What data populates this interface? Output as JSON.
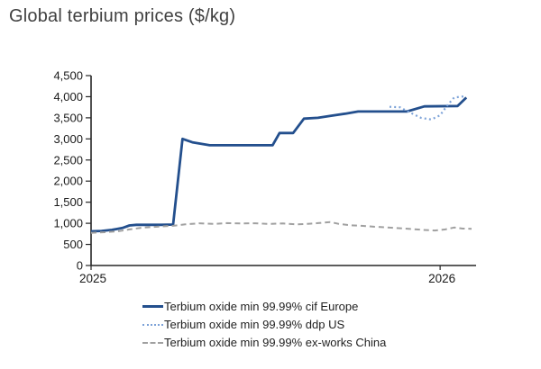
{
  "page": {
    "title": "Global terbium prices ($/kg)"
  },
  "chart_data": {
    "type": "line",
    "title": "Global terbium prices ($/kg)",
    "xlabel": "",
    "ylabel": "$/kg",
    "xlim": [
      2025,
      2026.103
    ],
    "ylim": [
      0,
      4500
    ],
    "grid": false,
    "legend_position": "bottom",
    "axis_color": "#262626",
    "y_ticks": [
      {
        "value": 0,
        "label": "0"
      },
      {
        "value": 500,
        "label": "500"
      },
      {
        "value": 1000,
        "label": "1,000"
      },
      {
        "value": 1500,
        "label": "1,500"
      },
      {
        "value": 2000,
        "label": "2,000"
      },
      {
        "value": 2500,
        "label": "2,500"
      },
      {
        "value": 3000,
        "label": "3,000"
      },
      {
        "value": 3500,
        "label": "3,500"
      },
      {
        "value": 4000,
        "label": "4,000"
      },
      {
        "value": 4500,
        "label": "4,500"
      }
    ],
    "x_ticks": [
      {
        "value": 2025,
        "label": "2025"
      },
      {
        "value": 2026,
        "label": "2026"
      }
    ],
    "series": [
      {
        "name": "Terbium oxide min 99.99% cif Europe",
        "style": "solid",
        "color": "#234f8d",
        "width": 2.8,
        "points": [
          [
            2025.0,
            810
          ],
          [
            2025.03,
            820
          ],
          [
            2025.06,
            845
          ],
          [
            2025.09,
            890
          ],
          [
            2025.11,
            950
          ],
          [
            2025.13,
            965
          ],
          [
            2025.2,
            965
          ],
          [
            2025.235,
            970
          ],
          [
            2025.262,
            3000
          ],
          [
            2025.29,
            2920
          ],
          [
            2025.34,
            2850
          ],
          [
            2025.52,
            2850
          ],
          [
            2025.54,
            3140
          ],
          [
            2025.579,
            3140
          ],
          [
            2025.61,
            3480
          ],
          [
            2025.65,
            3500
          ],
          [
            2025.69,
            3550
          ],
          [
            2025.73,
            3600
          ],
          [
            2025.765,
            3650
          ],
          [
            2025.905,
            3650
          ],
          [
            2025.955,
            3770
          ],
          [
            2026.05,
            3780
          ],
          [
            2026.075,
            3980
          ]
        ]
      },
      {
        "name": "Terbium oxide min 99.99% ddp US",
        "style": "dotted",
        "color": "#7ca2d8",
        "width": 2.2,
        "points": [
          [
            2025.855,
            3760
          ],
          [
            2025.885,
            3750
          ],
          [
            2025.91,
            3640
          ],
          [
            2025.945,
            3500
          ],
          [
            2025.975,
            3460
          ],
          [
            2026.0,
            3560
          ],
          [
            2026.02,
            3790
          ],
          [
            2026.04,
            3980
          ],
          [
            2026.07,
            4010
          ]
        ]
      },
      {
        "name": "Terbium oxide min 99.99% ex-works China",
        "style": "dashed",
        "color": "#a0a0a0",
        "width": 2,
        "points": [
          [
            2025.0,
            775
          ],
          [
            2025.04,
            790
          ],
          [
            2025.08,
            815
          ],
          [
            2025.11,
            855
          ],
          [
            2025.15,
            900
          ],
          [
            2025.2,
            925
          ],
          [
            2025.235,
            940
          ],
          [
            2025.27,
            975
          ],
          [
            2025.31,
            1000
          ],
          [
            2025.35,
            985
          ],
          [
            2025.39,
            1005
          ],
          [
            2025.43,
            995
          ],
          [
            2025.47,
            1000
          ],
          [
            2025.51,
            985
          ],
          [
            2025.55,
            995
          ],
          [
            2025.59,
            975
          ],
          [
            2025.625,
            990
          ],
          [
            2025.65,
            1005
          ],
          [
            2025.685,
            1030
          ],
          [
            2025.71,
            985
          ],
          [
            2025.74,
            955
          ],
          [
            2025.775,
            940
          ],
          [
            2025.81,
            920
          ],
          [
            2025.845,
            905
          ],
          [
            2025.88,
            885
          ],
          [
            2025.915,
            865
          ],
          [
            2025.95,
            845
          ],
          [
            2025.985,
            830
          ],
          [
            2026.015,
            855
          ],
          [
            2026.04,
            900
          ],
          [
            2026.065,
            875
          ],
          [
            2026.09,
            870
          ]
        ]
      }
    ]
  },
  "legend": {
    "items": [
      {
        "label": "Terbium oxide min 99.99% cif Europe"
      },
      {
        "label": "Terbium oxide min 99.99% ddp US"
      },
      {
        "label": "Terbium oxide min 99.99% ex-works China"
      }
    ]
  }
}
